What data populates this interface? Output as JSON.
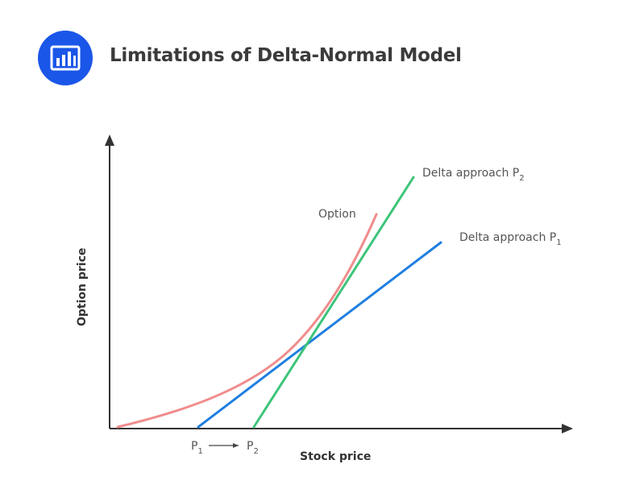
{
  "header": {
    "title": "Limitations of Delta-Normal Model",
    "icon": "bar-chart-icon",
    "icon_color": "#1a56e8"
  },
  "chart_data": {
    "type": "line",
    "xlabel": "Stock price",
    "ylabel": "Option price",
    "series": [
      {
        "name": "Option",
        "label": "Option",
        "color": "#f08c8c",
        "kind": "convex-curve"
      },
      {
        "name": "Delta approach P1",
        "label_main": "Delta approach P",
        "label_sub": "1",
        "color": "#1f7fe0",
        "kind": "tangent-line"
      },
      {
        "name": "Delta approach P2",
        "label_main": "Delta approach P",
        "label_sub": "2",
        "color": "#3ec47a",
        "kind": "tangent-line"
      }
    ],
    "x_markers": {
      "p1_main": "P",
      "p1_sub": "1",
      "p2_main": "P",
      "p2_sub": "2",
      "arrow": "shift-right"
    }
  }
}
